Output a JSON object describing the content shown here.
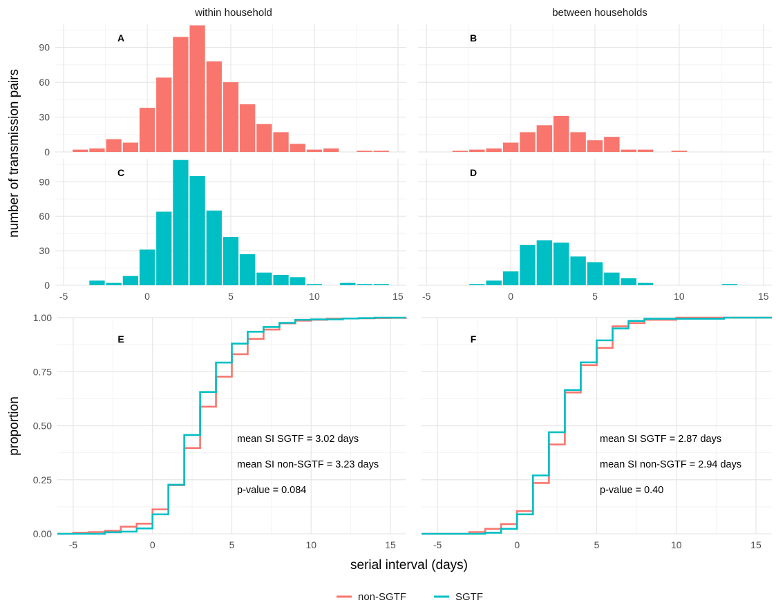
{
  "colors": {
    "non_sgtf": "#F8766D",
    "sgtf": "#00BFC4",
    "grid_major": "#e6e6e6",
    "grid_minor": "#f2f2f2"
  },
  "facets": {
    "within": "within household",
    "between": "between households"
  },
  "axes": {
    "hist_ylabel": "number of transmission pairs",
    "ecdf_ylabel": "proportion",
    "xlabel": "serial interval (days)"
  },
  "legend": {
    "items": [
      {
        "label": "non-SGTF",
        "color": "#F8766D"
      },
      {
        "label": "SGTF",
        "color": "#00BFC4"
      }
    ],
    "placement": "bottom"
  },
  "chart_data": [
    {
      "id": "A",
      "type": "bar",
      "facet": "within household",
      "series": "non-SGTF",
      "color": "#F8766D",
      "xlim": [
        -5.5,
        15.5
      ],
      "ylim": [
        0,
        110
      ],
      "x_ticks": [
        -5,
        0,
        5,
        10,
        15
      ],
      "y_ticks": [
        0,
        30,
        60,
        90
      ],
      "grid": true,
      "x": [
        -4,
        -3,
        -2,
        -1,
        0,
        1,
        2,
        3,
        4,
        5,
        6,
        7,
        8,
        9,
        10,
        11,
        13,
        14
      ],
      "values": [
        2,
        3,
        11,
        8,
        38,
        64,
        99,
        109,
        78,
        60,
        41,
        24,
        17,
        7,
        2,
        3,
        1,
        1
      ]
    },
    {
      "id": "B",
      "type": "bar",
      "facet": "between households",
      "series": "non-SGTF",
      "color": "#F8766D",
      "xlim": [
        -5.5,
        15.5
      ],
      "ylim": [
        0,
        110
      ],
      "x_ticks": [
        -5,
        0,
        5,
        10,
        15
      ],
      "y_ticks": [
        0,
        30,
        60,
        90
      ],
      "grid": true,
      "x": [
        -3,
        -2,
        -1,
        0,
        1,
        2,
        3,
        4,
        5,
        6,
        7,
        8,
        10
      ],
      "values": [
        1,
        2,
        3,
        8,
        17,
        23,
        31,
        17,
        10,
        13,
        2,
        2,
        1
      ]
    },
    {
      "id": "C",
      "type": "bar",
      "facet": "within household",
      "series": "SGTF",
      "color": "#00BFC4",
      "xlim": [
        -5.5,
        15.5
      ],
      "ylim": [
        0,
        110
      ],
      "x_ticks": [
        -5,
        0,
        5,
        10,
        15
      ],
      "y_ticks": [
        0,
        30,
        60,
        90
      ],
      "grid": true,
      "x": [
        -3,
        -2,
        -1,
        0,
        1,
        2,
        3,
        4,
        5,
        6,
        7,
        8,
        9,
        10,
        12,
        13,
        14
      ],
      "values": [
        4,
        2,
        8,
        31,
        64,
        109,
        95,
        65,
        42,
        27,
        11,
        9,
        7,
        1,
        2,
        1,
        1
      ]
    },
    {
      "id": "D",
      "type": "bar",
      "facet": "between households",
      "series": "SGTF",
      "color": "#00BFC4",
      "xlim": [
        -5.5,
        15.5
      ],
      "ylim": [
        0,
        110
      ],
      "x_ticks": [
        -5,
        0,
        5,
        10,
        15
      ],
      "y_ticks": [
        0,
        30,
        60,
        90
      ],
      "grid": true,
      "x": [
        -2,
        -1,
        0,
        1,
        2,
        3,
        4,
        5,
        6,
        7,
        8,
        13
      ],
      "values": [
        1,
        4,
        12,
        35,
        39,
        37,
        25,
        20,
        11,
        6,
        2,
        1
      ]
    },
    {
      "id": "E",
      "type": "line",
      "step": true,
      "facet": "within household",
      "xlim": [
        -6,
        16
      ],
      "ylim": [
        0,
        1
      ],
      "x_ticks": [
        -5,
        0,
        5,
        10,
        15
      ],
      "y_ticks": [
        0,
        0.25,
        0.5,
        0.75,
        1
      ],
      "y_tick_labels": [
        "0.00",
        "0.25",
        "0.50",
        "0.75",
        "1.00"
      ],
      "grid": true,
      "x": [
        -6,
        -5,
        -4,
        -3,
        -2,
        -1,
        0,
        1,
        2,
        3,
        4,
        5,
        6,
        7,
        8,
        9,
        10,
        11,
        12,
        13,
        14,
        15,
        16
      ],
      "series": [
        {
          "name": "non-SGTF",
          "color": "#F8766D",
          "values": [
            0,
            0.005,
            0.008,
            0.014,
            0.033,
            0.047,
            0.113,
            0.225,
            0.397,
            0.588,
            0.727,
            0.831,
            0.902,
            0.945,
            0.974,
            0.986,
            0.99,
            0.995,
            0.996,
            0.997,
            0.998,
            0.999,
            1.0
          ]
        },
        {
          "name": "SGTF",
          "color": "#00BFC4",
          "values": [
            0,
            0,
            0,
            0.007,
            0.01,
            0.025,
            0.09,
            0.227,
            0.457,
            0.656,
            0.792,
            0.88,
            0.935,
            0.957,
            0.976,
            0.99,
            0.992,
            0.992,
            0.996,
            0.998,
            1.0,
            1.0,
            1.0
          ]
        }
      ],
      "annotations": [
        "mean SI SGTF =  3.02 days",
        "mean SI non-SGTF =  3.23 days",
        "p-value =  0.084"
      ]
    },
    {
      "id": "F",
      "type": "line",
      "step": true,
      "facet": "between households",
      "xlim": [
        -6,
        16
      ],
      "ylim": [
        0,
        1
      ],
      "x_ticks": [
        -5,
        0,
        5,
        10,
        15
      ],
      "y_ticks": [
        0,
        0.25,
        0.5,
        0.75,
        1
      ],
      "grid": true,
      "x": [
        -6,
        -5,
        -4,
        -3,
        -2,
        -1,
        0,
        1,
        2,
        3,
        4,
        5,
        6,
        7,
        8,
        9,
        10,
        11,
        12,
        13,
        14,
        15,
        16
      ],
      "series": [
        {
          "name": "non-SGTF",
          "color": "#F8766D",
          "values": [
            0,
            0,
            0,
            0.008,
            0.023,
            0.045,
            0.105,
            0.235,
            0.413,
            0.654,
            0.78,
            0.86,
            0.96,
            0.975,
            0.99,
            0.99,
            1.0,
            1.0,
            1.0,
            1.0,
            1.0,
            1.0,
            1.0
          ]
        },
        {
          "name": "SGTF",
          "color": "#00BFC4",
          "values": [
            0,
            0,
            0,
            0,
            0.005,
            0.023,
            0.09,
            0.27,
            0.47,
            0.665,
            0.793,
            0.895,
            0.95,
            0.985,
            0.995,
            0.995,
            0.995,
            0.995,
            0.995,
            1.0,
            1.0,
            1.0,
            1.0
          ]
        }
      ],
      "annotations": [
        "mean SI SGTF =  2.87 days",
        "mean SI non-SGTF =  2.94 days",
        "p-value =  0.40"
      ]
    }
  ]
}
